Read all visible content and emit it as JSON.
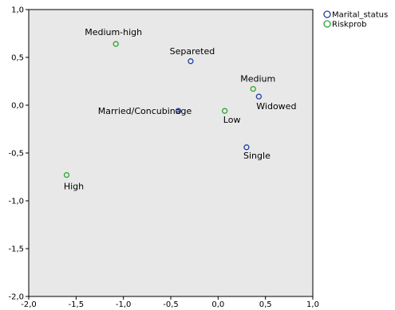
{
  "chart_data": {
    "type": "scatter",
    "title": "",
    "xlabel": "",
    "ylabel": "",
    "xlim": [
      -2.0,
      1.0
    ],
    "ylim": [
      -2.0,
      1.0
    ],
    "x_ticks": [
      {
        "value": -2.0,
        "label": "-2,0"
      },
      {
        "value": -1.5,
        "label": "-1,5"
      },
      {
        "value": -1.0,
        "label": "-1,0"
      },
      {
        "value": -0.5,
        "label": "-0,5"
      },
      {
        "value": 0.0,
        "label": "0,0"
      },
      {
        "value": 0.5,
        "label": "0,5"
      },
      {
        "value": 1.0,
        "label": "1,0"
      }
    ],
    "y_ticks": [
      {
        "value": 1.0,
        "label": "1,0"
      },
      {
        "value": 0.5,
        "label": "0,5"
      },
      {
        "value": 0.0,
        "label": "0,0"
      },
      {
        "value": -0.5,
        "label": "-0,5"
      },
      {
        "value": -1.0,
        "label": "-1,0"
      },
      {
        "value": -1.5,
        "label": "-1,5"
      },
      {
        "value": -2.0,
        "label": "-2,0"
      }
    ],
    "grid": false,
    "legend_position": "top-right outside",
    "plot_background": "#e8e8e8",
    "series": [
      {
        "name": "Marital_status",
        "color": "#1f3fa0",
        "points": [
          {
            "label": "Separeted",
            "x": -0.29,
            "y": 0.46
          },
          {
            "label": "Married/Concubinage",
            "x": -0.42,
            "y": -0.06
          },
          {
            "label": "Widowed",
            "x": 0.43,
            "y": 0.09
          },
          {
            "label": "Single",
            "x": 0.3,
            "y": -0.44
          }
        ]
      },
      {
        "name": "Riskprob",
        "color": "#2aa52a",
        "points": [
          {
            "label": "Medium-high",
            "x": -1.08,
            "y": 0.64
          },
          {
            "label": "Medium",
            "x": 0.37,
            "y": 0.17
          },
          {
            "label": "Low",
            "x": 0.07,
            "y": -0.06
          },
          {
            "label": "High",
            "x": -1.6,
            "y": -0.73
          }
        ]
      }
    ]
  }
}
